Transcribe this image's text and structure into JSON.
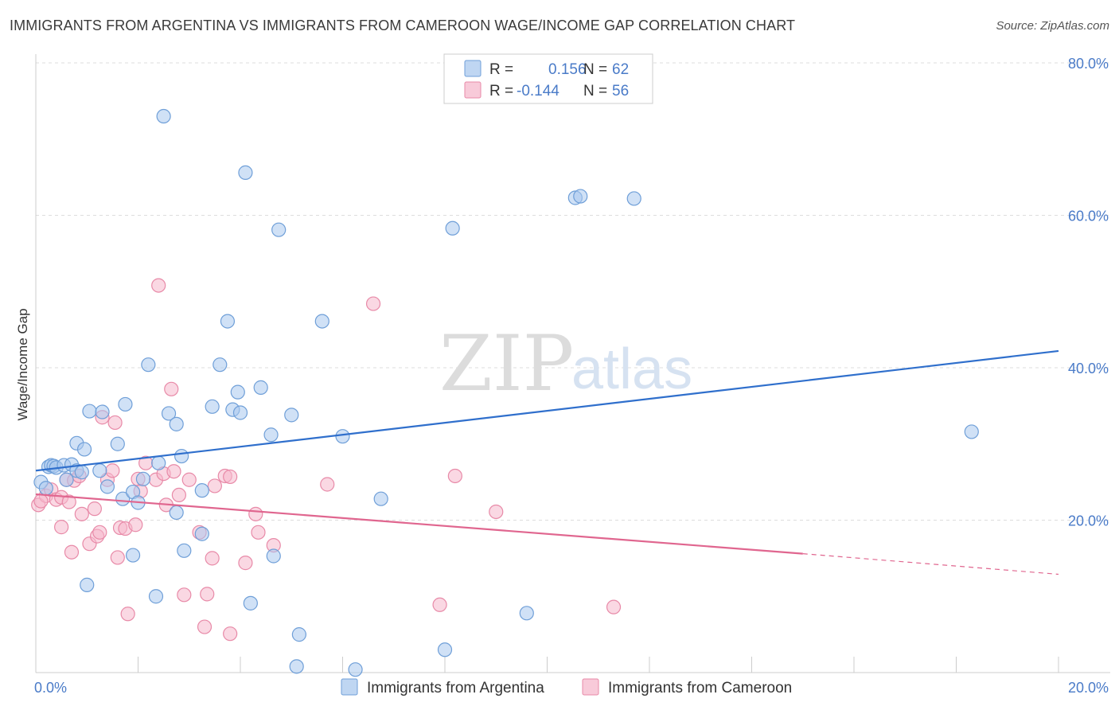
{
  "title": "IMMIGRANTS FROM ARGENTINA VS IMMIGRANTS FROM CAMEROON WAGE/INCOME GAP CORRELATION CHART",
  "source": "Source: ZipAtlas.com",
  "watermark": {
    "zip": "ZIP",
    "atlas": "atlas"
  },
  "colors": {
    "argentina_fill": "#a9c8ee",
    "argentina_stroke": "#6f9fd8",
    "argentina_line": "#2f6fcc",
    "cameroon_fill": "#f6b8cc",
    "cameroon_stroke": "#e88aa8",
    "cameroon_line": "#e0668f",
    "grid": "#dddddd",
    "tick_label": "#4a7bc8"
  },
  "legend": {
    "rows": [
      {
        "r_label": "R =",
        "r_value": "0.156",
        "n_label": "N =",
        "n_value": "62"
      },
      {
        "r_label": "R =",
        "r_value": "-0.144",
        "n_label": "N =",
        "n_value": "56"
      }
    ]
  },
  "chart_data": {
    "type": "scatter",
    "ylabel": "Wage/Income Gap",
    "xlim": [
      0,
      20
    ],
    "ylim": [
      0,
      80
    ],
    "x_tick_labels": [
      "0.0%",
      "20.0%"
    ],
    "y_tick_labels": [
      "20.0%",
      "40.0%",
      "60.0%",
      "80.0%"
    ],
    "y_ticks": [
      20,
      40,
      60,
      80
    ],
    "grid": true,
    "legend_position": "bottom",
    "series": [
      {
        "name": "Immigrants from Argentina",
        "trend": {
          "x": [
            0,
            20
          ],
          "y": [
            26.5,
            42.2
          ],
          "dashed_from": null
        },
        "points": [
          [
            0.1,
            25.0
          ],
          [
            0.2,
            24.2
          ],
          [
            0.25,
            27.0
          ],
          [
            0.3,
            27.2
          ],
          [
            0.35,
            27.1
          ],
          [
            0.4,
            26.9
          ],
          [
            0.55,
            27.2
          ],
          [
            0.7,
            27.3
          ],
          [
            0.6,
            25.3
          ],
          [
            0.8,
            26.5
          ],
          [
            0.9,
            26.3
          ],
          [
            0.8,
            30.1
          ],
          [
            0.95,
            29.3
          ],
          [
            1.05,
            34.3
          ],
          [
            1.3,
            34.2
          ],
          [
            1.25,
            26.5
          ],
          [
            1.4,
            24.4
          ],
          [
            1.6,
            30.0
          ],
          [
            1.7,
            22.8
          ],
          [
            1.75,
            35.2
          ],
          [
            1.9,
            23.7
          ],
          [
            2.0,
            22.3
          ],
          [
            2.1,
            25.4
          ],
          [
            2.2,
            40.4
          ],
          [
            2.4,
            27.5
          ],
          [
            2.5,
            73.0
          ],
          [
            2.6,
            34.0
          ],
          [
            2.75,
            32.6
          ],
          [
            2.85,
            28.4
          ],
          [
            2.9,
            16.0
          ],
          [
            2.75,
            21.0
          ],
          [
            3.25,
            18.2
          ],
          [
            3.25,
            23.9
          ],
          [
            3.45,
            34.9
          ],
          [
            3.6,
            40.4
          ],
          [
            3.75,
            46.1
          ],
          [
            3.85,
            34.5
          ],
          [
            3.95,
            36.8
          ],
          [
            4.0,
            34.1
          ],
          [
            4.1,
            65.6
          ],
          [
            4.2,
            9.1
          ],
          [
            4.4,
            37.4
          ],
          [
            4.6,
            31.2
          ],
          [
            4.65,
            15.3
          ],
          [
            4.75,
            58.1
          ],
          [
            5.0,
            33.8
          ],
          [
            5.15,
            5.0
          ],
          [
            5.1,
            0.8
          ],
          [
            5.6,
            46.1
          ],
          [
            6.0,
            31.0
          ],
          [
            6.25,
            0.4
          ],
          [
            6.75,
            22.8
          ],
          [
            8.0,
            3.0
          ],
          [
            8.15,
            58.3
          ],
          [
            9.6,
            7.8
          ],
          [
            10.55,
            62.3
          ],
          [
            10.65,
            62.5
          ],
          [
            11.7,
            62.2
          ],
          [
            18.3,
            31.6
          ],
          [
            1.0,
            11.5
          ],
          [
            1.9,
            15.4
          ],
          [
            2.35,
            10.0
          ]
        ]
      },
      {
        "name": "Immigrants from Cameroon",
        "trend": {
          "x": [
            0,
            15
          ],
          "y": [
            23.4,
            15.6
          ],
          "dashed_from": 15,
          "dashed_to": [
            20,
            12.9
          ]
        },
        "points": [
          [
            0.05,
            22.0
          ],
          [
            0.2,
            23.2
          ],
          [
            0.3,
            24.0
          ],
          [
            0.4,
            22.7
          ],
          [
            0.5,
            23.0
          ],
          [
            0.5,
            19.1
          ],
          [
            0.6,
            25.3
          ],
          [
            0.65,
            22.4
          ],
          [
            0.7,
            15.8
          ],
          [
            0.75,
            25.2
          ],
          [
            0.85,
            25.8
          ],
          [
            0.9,
            20.8
          ],
          [
            1.05,
            16.9
          ],
          [
            1.15,
            21.5
          ],
          [
            1.2,
            17.9
          ],
          [
            1.25,
            18.4
          ],
          [
            1.3,
            33.5
          ],
          [
            1.4,
            25.3
          ],
          [
            1.5,
            26.5
          ],
          [
            1.55,
            32.8
          ],
          [
            1.6,
            15.1
          ],
          [
            1.65,
            19.0
          ],
          [
            1.75,
            18.9
          ],
          [
            1.8,
            7.7
          ],
          [
            1.95,
            19.4
          ],
          [
            2.0,
            25.4
          ],
          [
            2.05,
            23.8
          ],
          [
            2.15,
            27.5
          ],
          [
            2.35,
            25.3
          ],
          [
            2.4,
            50.8
          ],
          [
            2.5,
            26.1
          ],
          [
            2.55,
            22.0
          ],
          [
            2.65,
            37.2
          ],
          [
            2.7,
            26.4
          ],
          [
            2.8,
            23.3
          ],
          [
            2.9,
            10.2
          ],
          [
            3.0,
            25.3
          ],
          [
            3.2,
            18.4
          ],
          [
            3.3,
            6.0
          ],
          [
            3.35,
            10.3
          ],
          [
            3.45,
            15.0
          ],
          [
            3.5,
            24.5
          ],
          [
            3.7,
            25.8
          ],
          [
            3.8,
            25.7
          ],
          [
            3.8,
            5.1
          ],
          [
            4.1,
            14.4
          ],
          [
            4.3,
            20.8
          ],
          [
            4.35,
            18.4
          ],
          [
            4.65,
            16.7
          ],
          [
            5.7,
            24.7
          ],
          [
            6.6,
            48.4
          ],
          [
            7.9,
            8.9
          ],
          [
            8.2,
            25.8
          ],
          [
            9.0,
            21.1
          ],
          [
            11.3,
            8.6
          ],
          [
            0.1,
            22.5
          ]
        ]
      }
    ]
  }
}
